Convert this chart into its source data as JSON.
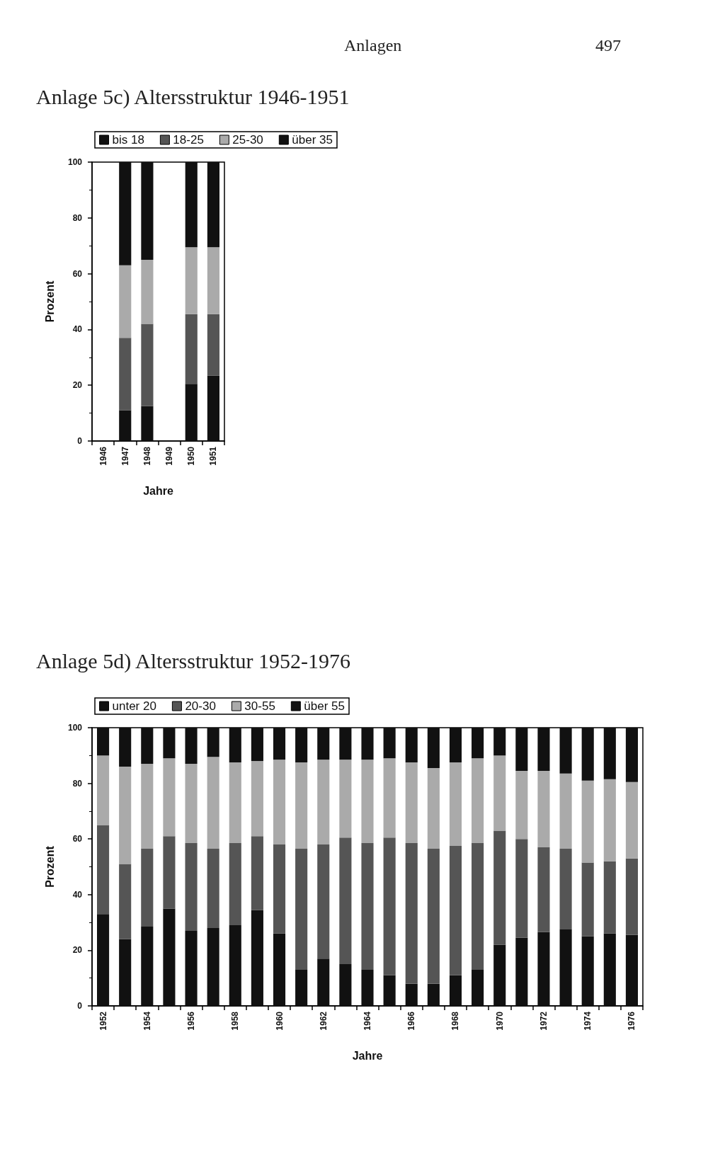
{
  "chart_data": [
    {
      "type": "bar",
      "title": "Anlage 5c) Altersstruktur 1946-1951",
      "annotations": [
        "Anlagen",
        "497"
      ],
      "xlabel": "Jahre",
      "ylabel": "Prozent",
      "categories": [
        "1946",
        "1947",
        "1948",
        "1949",
        "1950",
        "1951"
      ],
      "stacked": true,
      "legend": "top",
      "grid": false,
      "ylim": [
        0,
        100
      ],
      "yticks": [
        0,
        20,
        40,
        60,
        80,
        100
      ],
      "series": [
        {
          "name": "bis 18",
          "color": "#111111",
          "values": [
            null,
            11,
            12.5,
            null,
            20.5,
            23.5
          ]
        },
        {
          "name": "18-25",
          "color": "#555555",
          "values": [
            null,
            26,
            29.5,
            null,
            25,
            22
          ]
        },
        {
          "name": "25-30",
          "color": "#aaaaaa",
          "values": [
            null,
            26,
            23,
            null,
            24,
            24
          ]
        },
        {
          "name": "über 35",
          "color": "#111111",
          "values": [
            null,
            37,
            35,
            null,
            30.5,
            30.5
          ]
        }
      ]
    },
    {
      "type": "bar",
      "title": "Anlage 5d) Altersstruktur 1952-1976",
      "xlabel": "Jahre",
      "ylabel": "Prozent",
      "categories": [
        "1952",
        null,
        "1954",
        null,
        "1956",
        null,
        "1958",
        null,
        "1960",
        null,
        "1962",
        null,
        "1964",
        null,
        "1966",
        null,
        "1968",
        null,
        "1970",
        null,
        "1972",
        null,
        "1974",
        null,
        "1976"
      ],
      "stacked": true,
      "legend": "top",
      "grid": false,
      "ylim": [
        0,
        100
      ],
      "yticks": [
        0,
        20,
        40,
        60,
        80,
        100
      ],
      "series": [
        {
          "name": "unter 20",
          "color": "#111111",
          "values": [
            33,
            24,
            28.5,
            35,
            27,
            28,
            29,
            34.5,
            26,
            13,
            17,
            15,
            13,
            11,
            8,
            8,
            11,
            13,
            22,
            24.5,
            26.5,
            27.5,
            25,
            26,
            25.5
          ]
        },
        {
          "name": "20-30",
          "color": "#555555",
          "values": [
            32,
            27,
            28,
            26,
            31.5,
            28.5,
            29.5,
            26.5,
            32,
            43.5,
            41,
            45.5,
            45.5,
            49.5,
            50.5,
            48.5,
            46.5,
            45.5,
            41,
            35.5,
            30.5,
            29,
            26.5,
            26,
            27.5
          ]
        },
        {
          "name": "30-55",
          "color": "#aaaaaa",
          "values": [
            25,
            35,
            30.5,
            28,
            28.5,
            33,
            29,
            27,
            30.5,
            31,
            30.5,
            28,
            30,
            28.5,
            29,
            29,
            30,
            30.5,
            27,
            24.5,
            27.5,
            27,
            29.5,
            29.5,
            27.5
          ]
        },
        {
          "name": "über 55",
          "color": "#111111",
          "values": [
            10,
            14,
            13,
            11,
            13,
            10.5,
            12.5,
            12,
            11.5,
            12.5,
            11.5,
            11.5,
            11.5,
            11,
            12.5,
            14.5,
            12.5,
            11,
            10,
            15.5,
            15.5,
            16.5,
            19,
            18.5,
            19.5
          ]
        }
      ]
    }
  ]
}
